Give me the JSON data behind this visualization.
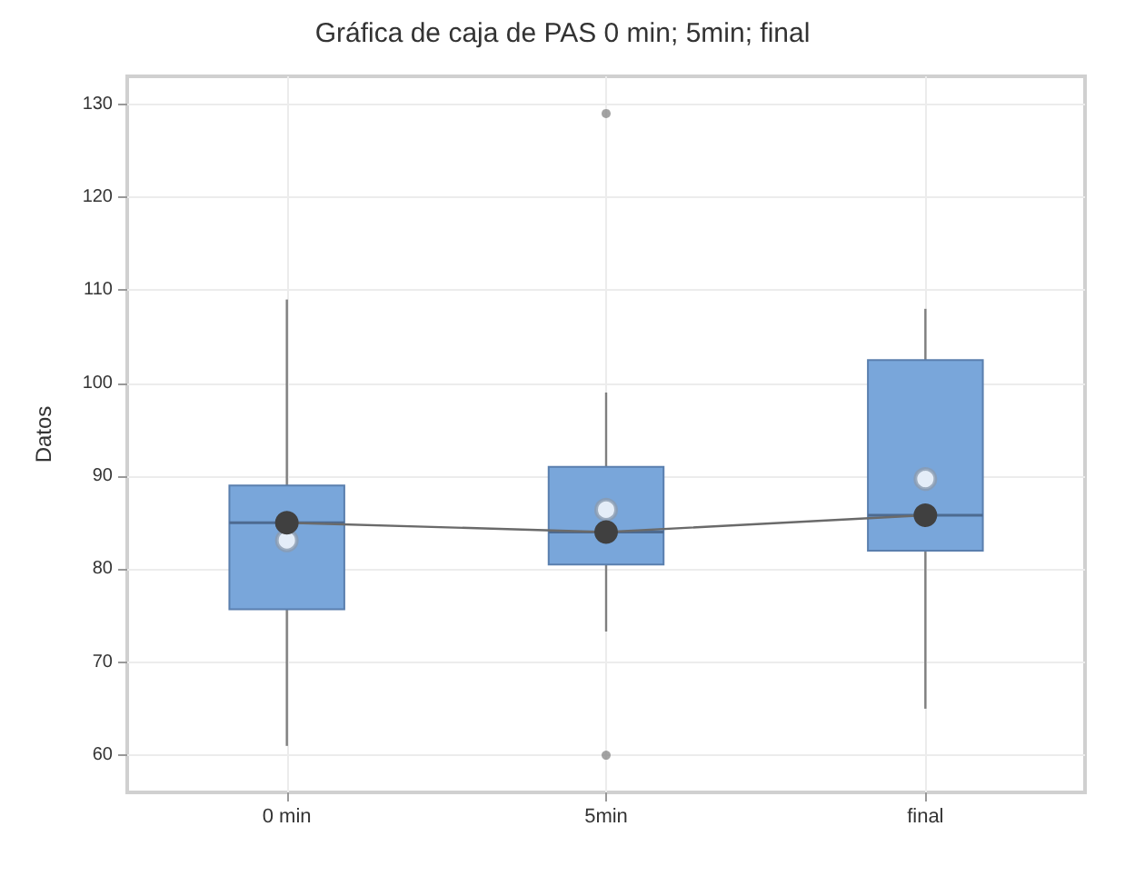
{
  "chart_data": {
    "type": "box",
    "title": "Gráfica de caja de PAS 0 min; 5min; final",
    "ylabel": "Datos",
    "categories": [
      "0 min",
      "5min",
      "final"
    ],
    "ylim": [
      56,
      133
    ],
    "yticks": [
      60,
      70,
      80,
      90,
      100,
      110,
      120,
      130
    ],
    "grid": true,
    "marker": "circle",
    "series": [
      {
        "color": "#79a6da",
        "boxes": [
          {
            "low": 61,
            "q1": 75.7,
            "median": 85,
            "q3": 89,
            "high": 109,
            "mean": 83.1
          },
          {
            "low": 73.3,
            "q1": 80.5,
            "median": 84,
            "q3": 91,
            "high": 99,
            "mean": 86.4,
            "outliers": [
              60,
              129
            ]
          },
          {
            "low": 65,
            "q1": 82,
            "median": 85.8,
            "q3": 102.5,
            "high": 108,
            "mean": 89.7
          }
        ]
      },
      {
        "type": "line",
        "color": "#404040",
        "values": [
          85,
          84,
          85.8
        ]
      }
    ]
  }
}
